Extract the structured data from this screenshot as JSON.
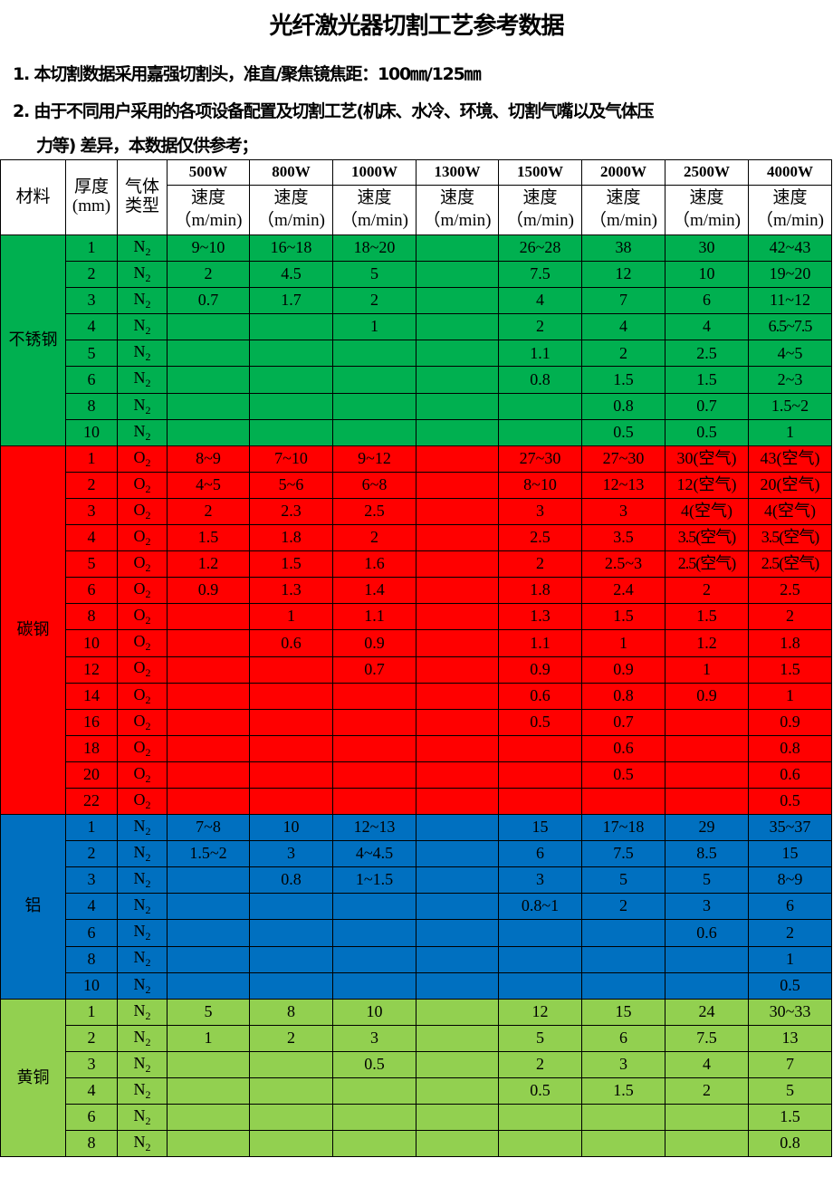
{
  "title": "光纤激光器切割工艺参考数据",
  "notes": [
    "1. 本切割数据采用嘉强切割头，准直/聚焦镜焦距：100㎜/125㎜",
    "2. 由于不同用户采用的各项设备配置及切割工艺(机床、水冷、环境、切割气嘴以及气体压",
    "力等) 差异，本数据仅供参考；"
  ],
  "table": {
    "headers": {
      "material": "材料",
      "thickness": "厚度(mm)",
      "gas": "气体类型",
      "powers": [
        "500W",
        "800W",
        "1000W",
        "1300W",
        "1500W",
        "2000W",
        "2500W",
        "4000W"
      ],
      "speed_label": "速度",
      "speed_unit": "（m/min)"
    },
    "materials": [
      {
        "name": "不锈钢",
        "color": "#00b050",
        "rows": [
          {
            "t": "1",
            "gas": "N",
            "gas_sub": "2",
            "speeds": [
              "9~10",
              "16~18",
              "18~20",
              "",
              "26~28",
              "38",
              "30",
              "42~43"
            ]
          },
          {
            "t": "2",
            "gas": "N",
            "gas_sub": "2",
            "speeds": [
              "2",
              "4.5",
              "5",
              "",
              "7.5",
              "12",
              "10",
              "19~20"
            ]
          },
          {
            "t": "3",
            "gas": "N",
            "gas_sub": "2",
            "speeds": [
              "0.7",
              "1.7",
              "2",
              "",
              "4",
              "7",
              "6",
              "11~12"
            ]
          },
          {
            "t": "4",
            "gas": "N",
            "gas_sub": "2",
            "speeds": [
              "",
              "",
              "1",
              "",
              "2",
              "4",
              "4",
              "6.5~7.5"
            ]
          },
          {
            "t": "5",
            "gas": "N",
            "gas_sub": "2",
            "speeds": [
              "",
              "",
              "",
              "",
              "1.1",
              "2",
              "2.5",
              "4~5"
            ]
          },
          {
            "t": "6",
            "gas": "N",
            "gas_sub": "2",
            "speeds": [
              "",
              "",
              "",
              "",
              "0.8",
              "1.5",
              "1.5",
              "2~3"
            ]
          },
          {
            "t": "8",
            "gas": "N",
            "gas_sub": "2",
            "speeds": [
              "",
              "",
              "",
              "",
              "",
              "0.8",
              "0.7",
              "1.5~2"
            ]
          },
          {
            "t": "10",
            "gas": "N",
            "gas_sub": "2",
            "speeds": [
              "",
              "",
              "",
              "",
              "",
              "0.5",
              "0.5",
              "1"
            ]
          }
        ]
      },
      {
        "name": "碳钢",
        "color": "#ff0000",
        "rows": [
          {
            "t": "1",
            "gas": "O",
            "gas_sub": "2",
            "speeds": [
              "8~9",
              "7~10",
              "9~12",
              "",
              "27~30",
              "27~30",
              "30(空气)",
              "43(空气)"
            ]
          },
          {
            "t": "2",
            "gas": "O",
            "gas_sub": "2",
            "speeds": [
              "4~5",
              "5~6",
              "6~8",
              "",
              "8~10",
              "12~13",
              "12(空气)",
              "20(空气)"
            ]
          },
          {
            "t": "3",
            "gas": "O",
            "gas_sub": "2",
            "speeds": [
              "2",
              "2.3",
              "2.5",
              "",
              "3",
              "3",
              "4(空气)",
              "4(空气)"
            ]
          },
          {
            "t": "4",
            "gas": "O",
            "gas_sub": "2",
            "speeds": [
              "1.5",
              "1.8",
              "2",
              "",
              "2.5",
              "3.5",
              "3.5(空气)",
              "3.5(空气)"
            ]
          },
          {
            "t": "5",
            "gas": "O",
            "gas_sub": "2",
            "speeds": [
              "1.2",
              "1.5",
              "1.6",
              "",
              "2",
              "2.5~3",
              "2.5(空气)",
              "2.5(空气)"
            ]
          },
          {
            "t": "6",
            "gas": "O",
            "gas_sub": "2",
            "speeds": [
              "0.9",
              "1.3",
              "1.4",
              "",
              "1.8",
              "2.4",
              "2",
              "2.5"
            ]
          },
          {
            "t": "8",
            "gas": "O",
            "gas_sub": "2",
            "speeds": [
              "",
              "1",
              "1.1",
              "",
              "1.3",
              "1.5",
              "1.5",
              "2"
            ]
          },
          {
            "t": "10",
            "gas": "O",
            "gas_sub": "2",
            "speeds": [
              "",
              "0.6",
              "0.9",
              "",
              "1.1",
              "1",
              "1.2",
              "1.8"
            ]
          },
          {
            "t": "12",
            "gas": "O",
            "gas_sub": "2",
            "speeds": [
              "",
              "",
              "0.7",
              "",
              "0.9",
              "0.9",
              "1",
              "1.5"
            ]
          },
          {
            "t": "14",
            "gas": "O",
            "gas_sub": "2",
            "speeds": [
              "",
              "",
              "",
              "",
              "0.6",
              "0.8",
              "0.9",
              "1"
            ]
          },
          {
            "t": "16",
            "gas": "O",
            "gas_sub": "2",
            "speeds": [
              "",
              "",
              "",
              "",
              "0.5",
              "0.7",
              "",
              "0.9"
            ]
          },
          {
            "t": "18",
            "gas": "O",
            "gas_sub": "2",
            "speeds": [
              "",
              "",
              "",
              "",
              "",
              "0.6",
              "",
              "0.8"
            ]
          },
          {
            "t": "20",
            "gas": "O",
            "gas_sub": "2",
            "speeds": [
              "",
              "",
              "",
              "",
              "",
              "0.5",
              "",
              "0.6"
            ]
          },
          {
            "t": "22",
            "gas": "O",
            "gas_sub": "2",
            "speeds": [
              "",
              "",
              "",
              "",
              "",
              "",
              "",
              "0.5"
            ]
          }
        ]
      },
      {
        "name": "铝",
        "color": "#0070c0",
        "rows": [
          {
            "t": "1",
            "gas": "N",
            "gas_sub": "2",
            "speeds": [
              "7~8",
              "10",
              "12~13",
              "",
              "15",
              "17~18",
              "29",
              "35~37"
            ]
          },
          {
            "t": "2",
            "gas": "N",
            "gas_sub": "2",
            "speeds": [
              "1.5~2",
              "3",
              "4~4.5",
              "",
              "6",
              "7.5",
              "8.5",
              "15"
            ]
          },
          {
            "t": "3",
            "gas": "N",
            "gas_sub": "2",
            "speeds": [
              "",
              "0.8",
              "1~1.5",
              "",
              "3",
              "5",
              "5",
              "8~9"
            ]
          },
          {
            "t": "4",
            "gas": "N",
            "gas_sub": "2",
            "speeds": [
              "",
              "",
              "",
              "",
              "0.8~1",
              "2",
              "3",
              "6"
            ]
          },
          {
            "t": "6",
            "gas": "N",
            "gas_sub": "2",
            "speeds": [
              "",
              "",
              "",
              "",
              "",
              "",
              "0.6",
              "2"
            ]
          },
          {
            "t": "8",
            "gas": "N",
            "gas_sub": "2",
            "speeds": [
              "",
              "",
              "",
              "",
              "",
              "",
              "",
              "1"
            ]
          },
          {
            "t": "10",
            "gas": "N",
            "gas_sub": "2",
            "speeds": [
              "",
              "",
              "",
              "",
              "",
              "",
              "",
              "0.5"
            ]
          }
        ]
      },
      {
        "name": "黄铜",
        "color": "#92d050",
        "rows": [
          {
            "t": "1",
            "gas": "N",
            "gas_sub": "2",
            "speeds": [
              "5",
              "8",
              "10",
              "",
              "12",
              "15",
              "24",
              "30~33"
            ]
          },
          {
            "t": "2",
            "gas": "N",
            "gas_sub": "2",
            "speeds": [
              "1",
              "2",
              "3",
              "",
              "5",
              "6",
              "7.5",
              "13"
            ]
          },
          {
            "t": "3",
            "gas": "N",
            "gas_sub": "2",
            "speeds": [
              "",
              "",
              "0.5",
              "",
              "2",
              "3",
              "4",
              "7"
            ]
          },
          {
            "t": "4",
            "gas": "N",
            "gas_sub": "2",
            "speeds": [
              "",
              "",
              "",
              "",
              "0.5",
              "1.5",
              "2",
              "5"
            ]
          },
          {
            "t": "6",
            "gas": "N",
            "gas_sub": "2",
            "speeds": [
              "",
              "",
              "",
              "",
              "",
              "",
              "",
              "1.5"
            ]
          },
          {
            "t": "8",
            "gas": "N",
            "gas_sub": "2",
            "speeds": [
              "",
              "",
              "",
              "",
              "",
              "",
              "",
              "0.8"
            ]
          }
        ]
      }
    ]
  }
}
